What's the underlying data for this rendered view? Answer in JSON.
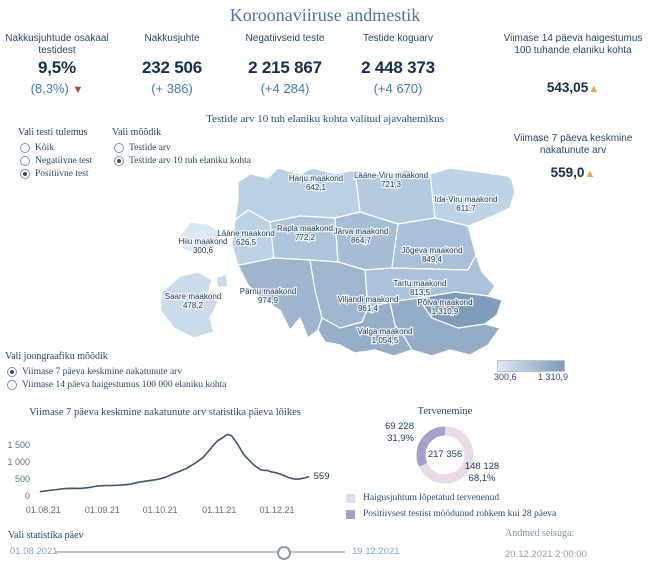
{
  "app": {
    "title": "Koroonaviiruse andmestik"
  },
  "kpis": [
    {
      "label": "Nakkusjuhtude osakaal testidest",
      "value": "9,5%",
      "delta": "(8,3%)",
      "trend": "down"
    },
    {
      "label": "Nakkusjuhte",
      "value": "232 506",
      "delta": "(+ 386)",
      "trend": ""
    },
    {
      "label": "Negatiivseid teste",
      "value": "2 215 867",
      "delta": "(+4 284)",
      "trend": ""
    },
    {
      "label": "Testide koguarv",
      "value": "2 448 373",
      "delta": "(+4 670)",
      "trend": ""
    },
    {
      "label": "Viimase 14 päeva haigestumus 100 tuhande elaniku kohta",
      "value": "543,05",
      "trend": "up"
    },
    {
      "label": "Viimase 7 päeva keskmine nakatunute arv",
      "value": "559,0",
      "trend": "up"
    }
  ],
  "filters": {
    "test_result": {
      "label": "Vali testi tulemus",
      "options": [
        {
          "label": "Kõik",
          "selected": false
        },
        {
          "label": "Negatiivne test",
          "selected": false
        },
        {
          "label": "Positiivne test",
          "selected": true
        }
      ]
    },
    "metric": {
      "label": "Vali mõõdik",
      "options": [
        {
          "label": "Testide arv",
          "selected": false
        },
        {
          "label": "Testide arv 10 tuh elaniku kohta",
          "selected": true
        }
      ]
    },
    "line_metric": {
      "label": "Vali joongraafiku mõõdik",
      "options": [
        {
          "label": "Viimase 7 päeva keskmine nakatunute arv",
          "selected": true
        },
        {
          "label": "Viimase 14 päeva haigestumus 100 000 elaniku kohta",
          "selected": false
        }
      ]
    },
    "stat_day": {
      "label": "Vali statistika päev",
      "from": "01.08.2021",
      "to": "19.12.2021",
      "handle_pos_pct": 79
    }
  },
  "footer": {
    "updated_label": "Andmed seisuga:",
    "updated_value": "20.12.2021 2:00:00"
  },
  "colors": {
    "accent_blue": "#3f7cb8",
    "up_orange": "#efa143",
    "down_red": "#b2443c",
    "title_blue": "#4e7499",
    "line_color": "#3d566e"
  },
  "chart_data": [
    {
      "type": "choropleth",
      "title": "Testide arv 10 tuh elaniku kohta valitud ajavahemikus",
      "legend": {
        "min": "300,6",
        "max": "1 310,9",
        "min_color": "#dbe9f5",
        "max_color": "#7f9cba"
      },
      "regions": [
        {
          "name": "Harju maakond",
          "value": "642,1",
          "color": "#bad1e4"
        },
        {
          "name": "Lääne-Viru maakond",
          "value": "721,3",
          "color": "#b3cadf"
        },
        {
          "name": "Ida-Viru maakond",
          "value": "611,7",
          "color": "#bdd3e6"
        },
        {
          "name": "Hiiu maakond",
          "value": "300,6",
          "color": "#dbe9f5"
        },
        {
          "name": "Lääne maakond",
          "value": "626,5",
          "color": "#bcd2e5"
        },
        {
          "name": "Rapla maakond",
          "value": "772,2",
          "color": "#aec6dc"
        },
        {
          "name": "Järva maakond",
          "value": "864,7",
          "color": "#a6bfd7"
        },
        {
          "name": "Jõgeva maakond",
          "value": "849,4",
          "color": "#a8c0d8"
        },
        {
          "name": "Saare maakond",
          "value": "478,2",
          "color": "#c9dcec"
        },
        {
          "name": "Pärnu maakond",
          "value": "974,9",
          "color": "#9db5cd"
        },
        {
          "name": "Viljandi maakond",
          "value": "961,4",
          "color": "#9eb6ce"
        },
        {
          "name": "Tartu maakond",
          "value": "813,5",
          "color": "#aac3da"
        },
        {
          "name": "Põlva maakond",
          "value": "1 310,9",
          "color": "#7f9cba"
        },
        {
          "name": "Valga maakond",
          "value": "1 054,5",
          "color": "#96afc8"
        },
        {
          "name": "",
          "value": "",
          "color": "#93adc6"
        }
      ]
    },
    {
      "type": "line",
      "title": "Viimase 7 päeva keskmine nakatunute arv statistika päeva lõikes",
      "x_ticks": [
        "01.08.21",
        "01.09.21",
        "01.10.21",
        "01.11.21",
        "01.12.21"
      ],
      "x_tick_pos": [
        0.03,
        0.245,
        0.455,
        0.67,
        0.88
      ],
      "y_ticks": [
        "1 500",
        "1 000",
        "500",
        "0"
      ],
      "y_tick_values": [
        1500,
        1000,
        500,
        0
      ],
      "ylim": [
        0,
        1900
      ],
      "x": [
        0.02,
        0.05,
        0.08,
        0.11,
        0.135,
        0.165,
        0.195,
        0.225,
        0.255,
        0.285,
        0.315,
        0.345,
        0.375,
        0.405,
        0.43,
        0.45,
        0.475,
        0.5,
        0.525,
        0.55,
        0.57,
        0.59,
        0.61,
        0.63,
        0.65,
        0.665,
        0.685,
        0.7,
        0.715,
        0.73,
        0.745,
        0.76,
        0.775,
        0.79,
        0.805,
        0.82,
        0.835,
        0.845,
        0.855,
        0.865,
        0.875,
        0.89,
        0.905,
        0.92,
        0.935,
        0.95,
        0.965,
        0.98,
        0.995
      ],
      "values": [
        130,
        160,
        190,
        215,
        225,
        222,
        245,
        290,
        305,
        308,
        320,
        345,
        400,
        435,
        465,
        490,
        550,
        640,
        720,
        800,
        900,
        1000,
        1120,
        1300,
        1500,
        1620,
        1720,
        1800,
        1760,
        1600,
        1400,
        1200,
        1080,
        950,
        850,
        770,
        745,
        752,
        715,
        695,
        680,
        645,
        595,
        548,
        508,
        490,
        502,
        528,
        559
      ],
      "end_label": "559"
    },
    {
      "type": "pie",
      "title": "Tervenemine",
      "center_label": "217 356",
      "slices": [
        {
          "label": "Haigusjuhtum lõpetatud tervenenud",
          "value": 148128,
          "value_display": "148 128",
          "pct_display": "68,1%",
          "color": "#ead9e9"
        },
        {
          "label": "Positiivsest testist möödunud rohkem kui 28 päeva",
          "value": 69228,
          "value_display": "69 228",
          "pct_display": "31,9%",
          "color": "#a4a0cb"
        }
      ]
    }
  ]
}
